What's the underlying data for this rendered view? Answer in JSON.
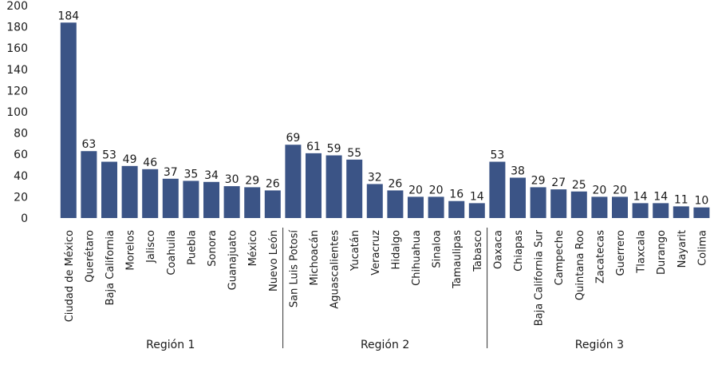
{
  "chart_data": {
    "type": "bar",
    "title": "",
    "xlabel": "",
    "ylabel": "",
    "ylim": [
      0,
      200
    ],
    "yticks": [
      0,
      20,
      40,
      60,
      80,
      100,
      120,
      140,
      160,
      180,
      200
    ],
    "grid": false,
    "legend": "none",
    "bar_color": "#3b5486",
    "categories": [
      "Ciudad de México",
      "Querétaro",
      "Baja California",
      "Morelos",
      "Jalisco",
      "Coahuila",
      "Puebla",
      "Sonora",
      "Guanajuato",
      "México",
      "Nuevo León",
      "San Luis Potosí",
      "Michoacán",
      "Aguascalientes",
      "Yucatán",
      "Veracruz",
      "Hidalgo",
      "Chihuahua",
      "Sinaloa",
      "Tamaulipas",
      "Tabasco",
      "Oaxaca",
      "Chiapas",
      "Baja California Sur",
      "Campeche",
      "Quintana Roo",
      "Zacatecas",
      "Guerrero",
      "Tlaxcala",
      "Durango",
      "Nayarit",
      "Colima"
    ],
    "values": [
      184,
      63,
      53,
      49,
      46,
      37,
      35,
      34,
      30,
      29,
      26,
      69,
      61,
      59,
      55,
      32,
      26,
      20,
      20,
      16,
      14,
      53,
      38,
      29,
      27,
      25,
      20,
      20,
      14,
      14,
      11,
      10
    ],
    "groups": [
      {
        "label": "Región 1",
        "count": 11
      },
      {
        "label": "Región 2",
        "count": 10
      },
      {
        "label": "Región 3",
        "count": 11
      }
    ]
  }
}
